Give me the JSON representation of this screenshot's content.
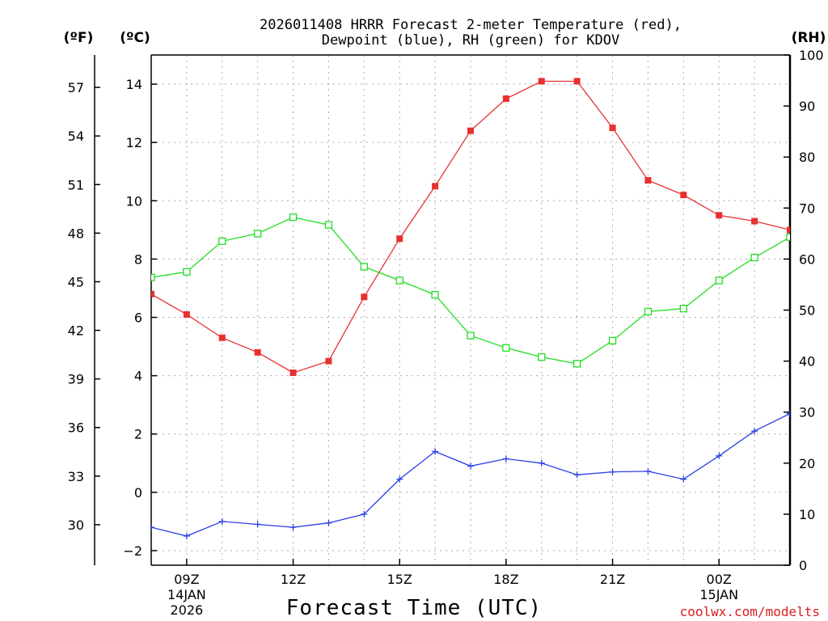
{
  "chart_data": {
    "type": "line",
    "title_line1": "2026011408 HRRR Forecast 2-meter Temperature (red),",
    "title_line2": "Dewpoint (blue), RH (green) for KDOV",
    "xlabel": "Forecast Time (UTC)",
    "credit": "coolwx.com/modelts",
    "units": {
      "fahrenheit": "(ºF)",
      "celsius": "(ºC)",
      "rh": "(RH)"
    },
    "x_hours": [
      8,
      9,
      10,
      11,
      12,
      13,
      14,
      15,
      16,
      17,
      18,
      19,
      20,
      21,
      22,
      23,
      24,
      25,
      26
    ],
    "xlim": [
      8,
      26
    ],
    "x_ticks": [
      {
        "hour": 9,
        "label": "09Z",
        "date": "14JAN",
        "year": "2026"
      },
      {
        "hour": 12,
        "label": "12Z"
      },
      {
        "hour": 15,
        "label": "15Z"
      },
      {
        "hour": 18,
        "label": "18Z"
      },
      {
        "hour": 21,
        "label": "21Z"
      },
      {
        "hour": 24,
        "label": "00Z",
        "date": "15JAN"
      }
    ],
    "y_celsius": {
      "ylim": [
        -2.5,
        15
      ],
      "ticks": [
        -2,
        0,
        2,
        4,
        6,
        8,
        10,
        12,
        14
      ]
    },
    "y_fahrenheit": {
      "ticks": [
        30,
        33,
        36,
        39,
        42,
        45,
        48,
        51,
        54,
        57
      ]
    },
    "y_rh": {
      "ylim": [
        0,
        100
      ],
      "ticks": [
        0,
        10,
        20,
        30,
        40,
        50,
        60,
        70,
        80,
        90,
        100
      ]
    },
    "series": [
      {
        "name": "Temperature",
        "unit": "C",
        "color": "#e83030",
        "marker": "filled-square",
        "values": [
          6.8,
          6.1,
          5.3,
          4.8,
          4.1,
          4.5,
          6.7,
          8.7,
          10.5,
          12.4,
          13.5,
          14.1,
          14.1,
          12.5,
          10.7,
          10.2,
          9.5,
          9.3,
          9.0
        ]
      },
      {
        "name": "Dewpoint",
        "unit": "C",
        "color": "#2a3fe6",
        "marker": "plus",
        "values": [
          -1.2,
          -1.5,
          -1.0,
          -1.1,
          -1.2,
          -1.05,
          -0.75,
          0.45,
          1.4,
          0.9,
          1.15,
          1.0,
          0.6,
          0.7,
          0.72,
          0.45,
          1.25,
          2.1,
          2.7
        ]
      },
      {
        "name": "RH",
        "unit": "%",
        "color": "#22dd22",
        "marker": "open-square",
        "values": [
          56.4,
          57.5,
          63.5,
          65.0,
          68.2,
          66.7,
          58.5,
          55.8,
          53.0,
          45.0,
          42.6,
          40.8,
          39.5,
          44.0,
          49.7,
          50.3,
          55.8,
          60.3,
          64.3
        ]
      }
    ]
  }
}
